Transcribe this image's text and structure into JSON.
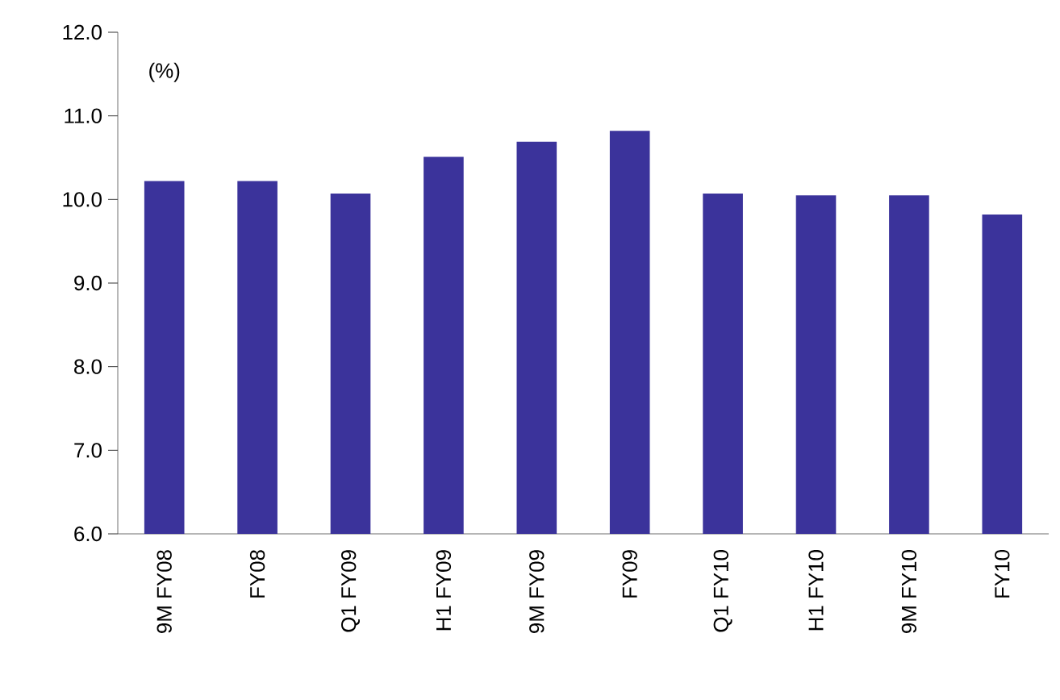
{
  "chart_data": {
    "type": "bar",
    "ylabel": "(%)",
    "categories": [
      "9M FY08",
      "FY08",
      "Q1 FY09",
      "H1 FY09",
      "9M FY09",
      "FY09",
      "Q1 FY10",
      "H1 FY10",
      "9M FY10",
      "FY10"
    ],
    "values": [
      10.22,
      10.22,
      10.07,
      10.51,
      10.69,
      10.82,
      10.07,
      10.05,
      10.05,
      9.82
    ],
    "color": "#3b339b",
    "ylim": [
      6.0,
      12.0
    ],
    "yticks": [
      {
        "value": 6,
        "label": "6.0"
      },
      {
        "value": 7,
        "label": "7.0"
      },
      {
        "value": 8,
        "label": "8.0"
      },
      {
        "value": 9,
        "label": "9.0"
      },
      {
        "value": 10,
        "label": "10.0"
      },
      {
        "value": 11,
        "label": "11.0"
      },
      {
        "value": 12,
        "label": "12.0"
      }
    ]
  }
}
